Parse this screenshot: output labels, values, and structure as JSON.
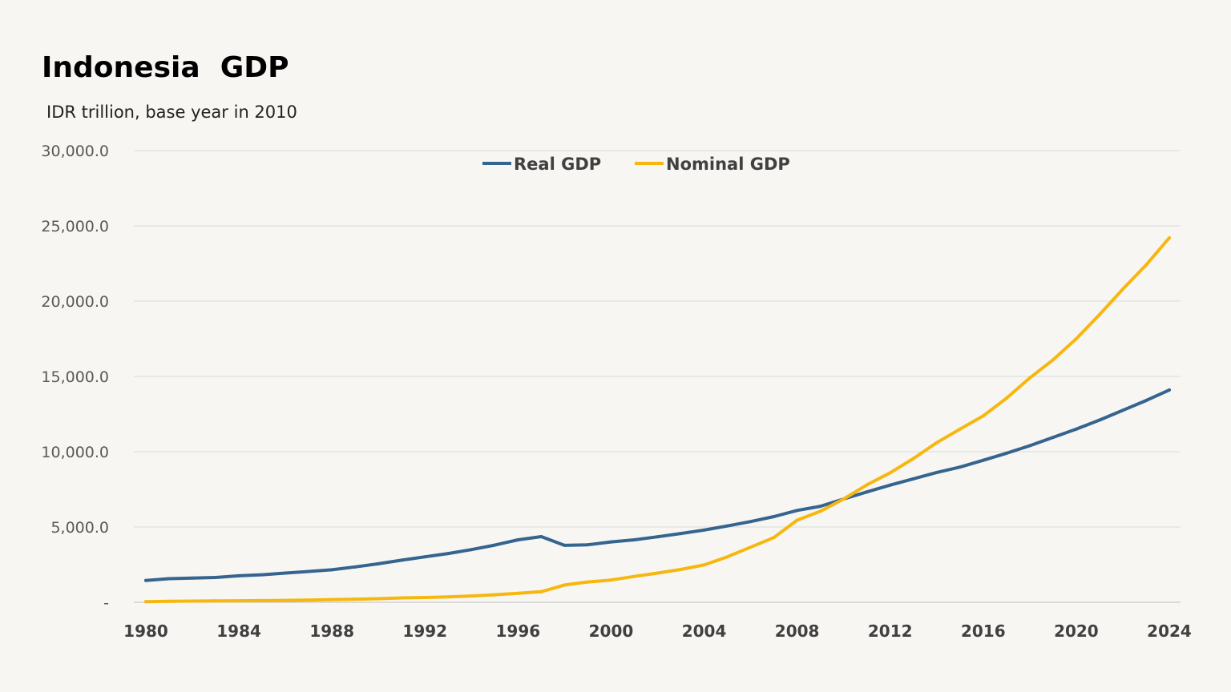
{
  "chart_data": {
    "type": "line",
    "title": "Indonesia  GDP",
    "subtitle": "IDR trillion, base year in 2010",
    "xlabel": "",
    "ylabel": "",
    "ylim": [
      0,
      30000
    ],
    "y_ticks": [
      0,
      5000,
      10000,
      15000,
      20000,
      25000,
      30000
    ],
    "y_tick_labels": [
      "-",
      "5,000.0",
      "10,000.0",
      "15,000.0",
      "20,000.0",
      "25,000.0",
      "30,000.0"
    ],
    "x_tick_labels": [
      "1980",
      "1984",
      "1988",
      "1992",
      "1996",
      "2000",
      "2004",
      "2008",
      "2012",
      "2016",
      "2020",
      "2024"
    ],
    "grid": true,
    "legend_position": "top-center",
    "x": [
      1980,
      1981,
      1982,
      1983,
      1984,
      1985,
      1986,
      1987,
      1988,
      1989,
      1990,
      1991,
      1992,
      1993,
      1994,
      1995,
      1996,
      1997,
      1998,
      1999,
      2000,
      2001,
      2002,
      2003,
      2004,
      2005,
      2006,
      2007,
      2008,
      2009,
      2010,
      2011,
      2012,
      2013,
      2014,
      2015,
      2016,
      2017,
      2018,
      2019,
      2020,
      2021,
      2022,
      2023,
      2024
    ],
    "series": [
      {
        "name": "Real GDP",
        "color": "#35648f",
        "values": [
          1450,
          1570,
          1610,
          1650,
          1760,
          1830,
          1940,
          2050,
          2160,
          2350,
          2560,
          2800,
          3020,
          3240,
          3500,
          3800,
          4150,
          4360,
          3780,
          3820,
          4010,
          4150,
          4350,
          4570,
          4800,
          5070,
          5360,
          5690,
          6100,
          6380,
          6860,
          7330,
          7780,
          8200,
          8620,
          8980,
          9430,
          9900,
          10400,
          10950,
          11500,
          12100,
          12750,
          13400,
          14100
        ]
      },
      {
        "name": "Nominal GDP",
        "color": "#f6b70f",
        "values": [
          45,
          70,
          80,
          90,
          100,
          110,
          130,
          150,
          180,
          210,
          240,
          290,
          320,
          360,
          420,
          500,
          600,
          700,
          1150,
          1350,
          1480,
          1720,
          1940,
          2180,
          2480,
          3020,
          3660,
          4300,
          5450,
          6050,
          6860,
          7800,
          8600,
          9550,
          10600,
          11500,
          12380,
          13550,
          14900,
          16100,
          17500,
          19100,
          20800,
          22400,
          24200
        ]
      }
    ]
  }
}
